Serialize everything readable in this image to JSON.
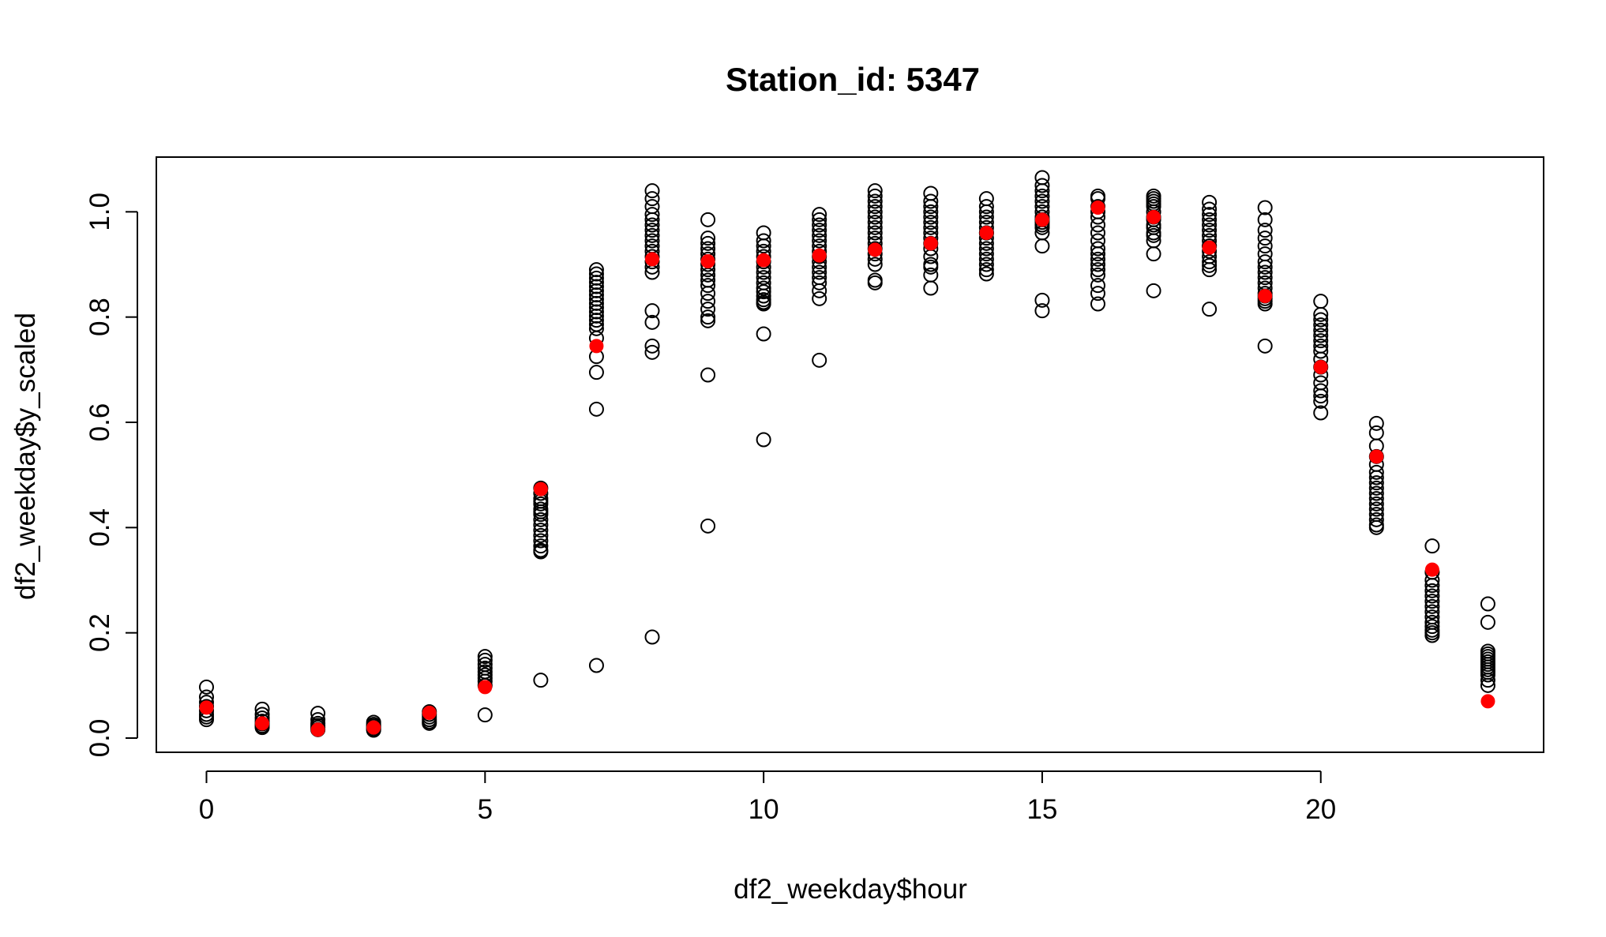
{
  "chart_data": {
    "type": "scatter",
    "title": "Station_id: 5347",
    "xlabel": "df2_weekday$hour",
    "ylabel": "df2_weekday$y_scaled",
    "xlim": [
      -0.9,
      24.0
    ],
    "ylim": [
      -0.027,
      1.104
    ],
    "xticks": [
      0,
      5,
      10,
      15,
      20
    ],
    "yticks": [
      0.0,
      0.2,
      0.4,
      0.6,
      0.8,
      1.0
    ],
    "xtick_labels": [
      "0",
      "5",
      "10",
      "15",
      "20"
    ],
    "ytick_labels": [
      "0.0",
      "0.2",
      "0.4",
      "0.6",
      "0.8",
      "1.0"
    ],
    "grid": false,
    "legend": "none",
    "colors": {
      "observed": "#000000",
      "mean": "#ff0000"
    },
    "series": [
      {
        "marker": "open-circle",
        "x": [
          0,
          0,
          0,
          0,
          0,
          0,
          0,
          0,
          1,
          1,
          1,
          1,
          1,
          1,
          1,
          2,
          2,
          2,
          2,
          2,
          2,
          3,
          3,
          3,
          3,
          3,
          3,
          4,
          4,
          4,
          4,
          4,
          4,
          5,
          5,
          5,
          5,
          5,
          5,
          5,
          5,
          5,
          5,
          6,
          6,
          6,
          6,
          6,
          6,
          6,
          6,
          6,
          6,
          6,
          6,
          6,
          6,
          6,
          6,
          6,
          7,
          7,
          7,
          7,
          7,
          7,
          7,
          7,
          7,
          7,
          7,
          7,
          7,
          7,
          7,
          7,
          7,
          7,
          7,
          7,
          8,
          8,
          8,
          8,
          8,
          8,
          8,
          8,
          8,
          8,
          8,
          8,
          8,
          8,
          8,
          8,
          8,
          8,
          8,
          8,
          9,
          9,
          9,
          9,
          9,
          9,
          9,
          9,
          9,
          9,
          9,
          9,
          9,
          9,
          9,
          9,
          9,
          9,
          10,
          10,
          10,
          10,
          10,
          10,
          10,
          10,
          10,
          10,
          10,
          10,
          10,
          10,
          10,
          10,
          10,
          10,
          11,
          11,
          11,
          11,
          11,
          11,
          11,
          11,
          11,
          11,
          11,
          11,
          11,
          11,
          11,
          11,
          11,
          12,
          12,
          12,
          12,
          12,
          12,
          12,
          12,
          12,
          12,
          12,
          12,
          12,
          12,
          12,
          12,
          12,
          13,
          13,
          13,
          13,
          13,
          13,
          13,
          13,
          13,
          13,
          13,
          13,
          13,
          13,
          13,
          13,
          14,
          14,
          14,
          14,
          14,
          14,
          14,
          14,
          14,
          14,
          14,
          14,
          14,
          14,
          14,
          14,
          15,
          15,
          15,
          15,
          15,
          15,
          15,
          15,
          15,
          15,
          15,
          15,
          15,
          15,
          15,
          15,
          16,
          16,
          16,
          16,
          16,
          16,
          16,
          16,
          16,
          16,
          16,
          16,
          16,
          16,
          16,
          16,
          16,
          17,
          17,
          17,
          17,
          17,
          17,
          17,
          17,
          17,
          17,
          17,
          17,
          17,
          17,
          17,
          18,
          18,
          18,
          18,
          18,
          18,
          18,
          18,
          18,
          18,
          18,
          18,
          18,
          18,
          18,
          18,
          19,
          19,
          19,
          19,
          19,
          19,
          19,
          19,
          19,
          19,
          19,
          19,
          19,
          19,
          19,
          19,
          19,
          19,
          20,
          20,
          20,
          20,
          20,
          20,
          20,
          20,
          20,
          20,
          20,
          20,
          20,
          20,
          20,
          20,
          20,
          21,
          21,
          21,
          21,
          21,
          21,
          21,
          21,
          21,
          21,
          21,
          21,
          21,
          21,
          21,
          21,
          21,
          22,
          22,
          22,
          22,
          22,
          22,
          22,
          22,
          22,
          22,
          22,
          22,
          22,
          22,
          22,
          23,
          23,
          23,
          23,
          23,
          23,
          23,
          23,
          23,
          23,
          23,
          23,
          23,
          23
        ],
        "y": [
          0.097,
          0.078,
          0.068,
          0.06,
          0.052,
          0.045,
          0.04,
          0.035,
          0.055,
          0.045,
          0.038,
          0.032,
          0.027,
          0.023,
          0.02,
          0.047,
          0.035,
          0.028,
          0.024,
          0.02,
          0.016,
          0.03,
          0.026,
          0.023,
          0.02,
          0.017,
          0.015,
          0.05,
          0.045,
          0.04,
          0.035,
          0.031,
          0.028,
          0.155,
          0.148,
          0.14,
          0.133,
          0.126,
          0.12,
          0.114,
          0.108,
          0.1,
          0.044,
          0.475,
          0.465,
          0.455,
          0.445,
          0.435,
          0.425,
          0.415,
          0.405,
          0.395,
          0.385,
          0.375,
          0.365,
          0.357,
          0.354,
          0.45,
          0.43,
          0.11,
          0.89,
          0.882,
          0.874,
          0.866,
          0.858,
          0.85,
          0.842,
          0.834,
          0.826,
          0.818,
          0.81,
          0.802,
          0.794,
          0.786,
          0.778,
          0.76,
          0.725,
          0.695,
          0.625,
          0.138,
          1.04,
          1.025,
          1.01,
          0.995,
          0.985,
          0.975,
          0.965,
          0.955,
          0.945,
          0.935,
          0.925,
          0.915,
          0.905,
          0.895,
          0.885,
          0.812,
          0.79,
          0.745,
          0.733,
          0.192,
          0.985,
          0.95,
          0.94,
          0.93,
          0.92,
          0.91,
          0.9,
          0.89,
          0.88,
          0.87,
          0.86,
          0.845,
          0.83,
          0.815,
          0.8,
          0.793,
          0.69,
          0.403,
          0.96,
          0.945,
          0.935,
          0.925,
          0.915,
          0.905,
          0.895,
          0.885,
          0.875,
          0.865,
          0.855,
          0.848,
          0.84,
          0.833,
          0.828,
          0.825,
          0.768,
          0.567,
          0.995,
          0.985,
          0.975,
          0.965,
          0.955,
          0.945,
          0.935,
          0.925,
          0.915,
          0.905,
          0.895,
          0.885,
          0.875,
          0.865,
          0.85,
          0.835,
          0.718,
          1.04,
          1.03,
          1.02,
          1.01,
          1.0,
          0.99,
          0.98,
          0.97,
          0.96,
          0.95,
          0.94,
          0.93,
          0.92,
          0.91,
          0.9,
          0.87,
          0.865,
          1.035,
          1.02,
          1.01,
          1.0,
          0.99,
          0.98,
          0.97,
          0.96,
          0.95,
          0.94,
          0.93,
          0.915,
          0.9,
          0.895,
          0.88,
          0.855,
          1.025,
          1.01,
          1.0,
          0.99,
          0.98,
          0.97,
          0.96,
          0.95,
          0.94,
          0.93,
          0.92,
          0.91,
          0.9,
          0.89,
          0.882,
          0.96,
          1.065,
          1.05,
          1.04,
          1.03,
          1.02,
          1.01,
          1.0,
          0.99,
          0.985,
          0.98,
          0.975,
          0.97,
          0.96,
          0.935,
          0.832,
          0.812,
          1.03,
          1.025,
          1.01,
          1.0,
          0.99,
          0.975,
          0.96,
          0.945,
          0.93,
          0.92,
          0.91,
          0.9,
          0.89,
          0.88,
          0.86,
          0.845,
          0.825,
          1.03,
          1.025,
          1.02,
          1.015,
          1.01,
          1.0,
          0.99,
          0.985,
          0.975,
          0.97,
          0.96,
          0.955,
          0.945,
          0.92,
          0.85,
          1.018,
          1.005,
          0.995,
          0.985,
          0.975,
          0.965,
          0.955,
          0.945,
          0.935,
          0.925,
          0.915,
          0.905,
          0.898,
          0.89,
          0.935,
          0.815,
          1.008,
          0.985,
          0.965,
          0.95,
          0.935,
          0.92,
          0.905,
          0.895,
          0.885,
          0.875,
          0.865,
          0.855,
          0.845,
          0.84,
          0.835,
          0.83,
          0.825,
          0.745,
          0.83,
          0.805,
          0.795,
          0.785,
          0.775,
          0.765,
          0.755,
          0.745,
          0.735,
          0.72,
          0.705,
          0.69,
          0.675,
          0.66,
          0.65,
          0.64,
          0.618,
          0.598,
          0.58,
          0.555,
          0.535,
          0.52,
          0.505,
          0.495,
          0.485,
          0.475,
          0.465,
          0.455,
          0.445,
          0.435,
          0.425,
          0.415,
          0.405,
          0.4,
          0.365,
          0.315,
          0.3,
          0.29,
          0.28,
          0.27,
          0.26,
          0.25,
          0.24,
          0.23,
          0.22,
          0.212,
          0.205,
          0.2,
          0.195,
          0.255,
          0.22,
          0.165,
          0.16,
          0.155,
          0.15,
          0.145,
          0.14,
          0.135,
          0.13,
          0.125,
          0.12,
          0.11,
          0.1
        ]
      },
      {
        "marker": "filled-red-circle",
        "x": [
          0,
          1,
          2,
          3,
          4,
          5,
          6,
          7,
          8,
          9,
          10,
          11,
          12,
          13,
          14,
          15,
          16,
          17,
          18,
          19,
          20,
          21,
          22,
          23
        ],
        "y": [
          0.058,
          0.028,
          0.016,
          0.02,
          0.048,
          0.097,
          0.473,
          0.745,
          0.91,
          0.906,
          0.908,
          0.917,
          0.928,
          0.94,
          0.96,
          0.985,
          1.008,
          0.99,
          0.932,
          0.84,
          0.705,
          0.535,
          0.32,
          0.07
        ]
      }
    ]
  }
}
